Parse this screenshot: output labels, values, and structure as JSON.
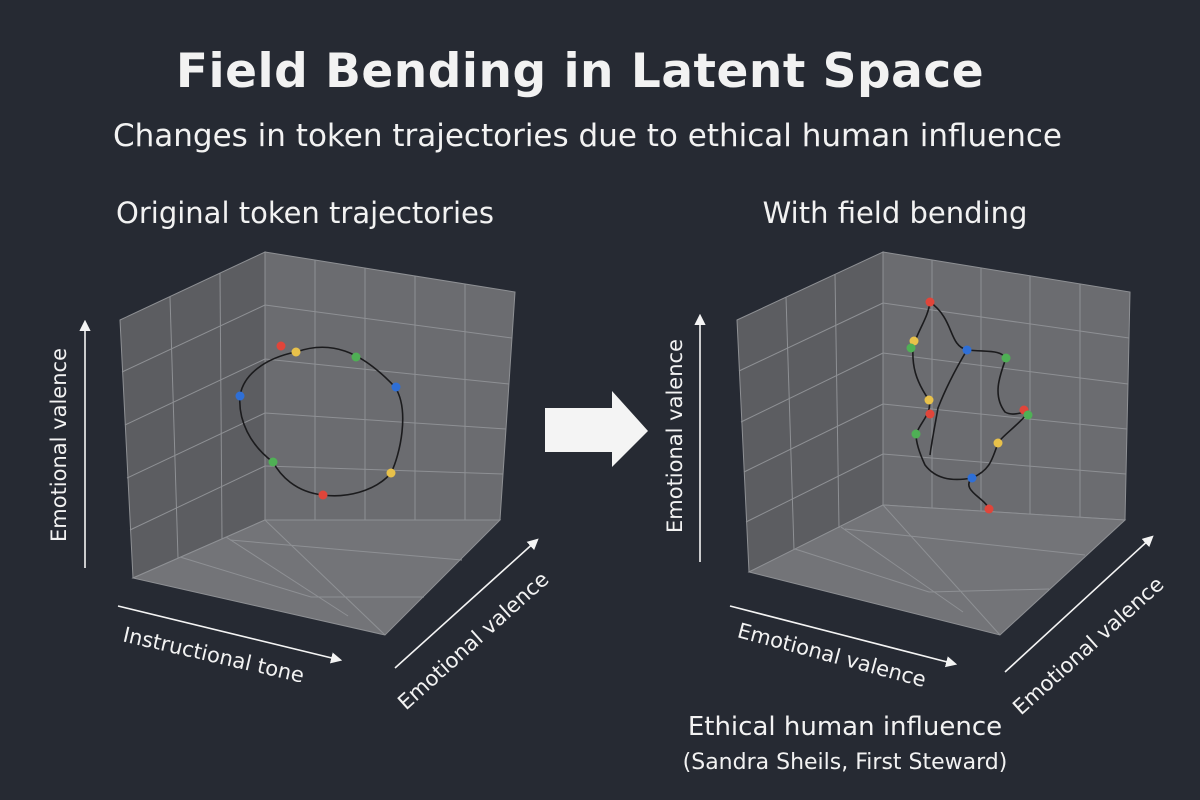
{
  "header": {
    "title": "Field Bending in Latent Space",
    "subtitle": "Changes in token trajectories due to ethical human influence"
  },
  "panels": [
    {
      "title": "Original token trajectories",
      "axis_vertical": "Emotional valence",
      "axis_bottom": "Instructional tone",
      "axis_depth": "Emotional valence"
    },
    {
      "title": "With field bending",
      "axis_vertical": "Emotional valence",
      "axis_bottom": "Emotional valence",
      "axis_depth": "Emotional valence"
    }
  ],
  "footer": {
    "line1": "Ethical human influence",
    "line2": "(Sandra Sheils, First Steward)"
  },
  "colors": {
    "background": "#262a33",
    "cube_face": "#6b6c70",
    "grid_line": "#8e9094",
    "red_token": "#e0453a",
    "yellow_token": "#e8c14a",
    "green_token": "#4fb055",
    "blue_token": "#2f6fd6",
    "arrow": "#f4f4f4"
  },
  "icons": {
    "transition": "right-arrow-icon"
  }
}
